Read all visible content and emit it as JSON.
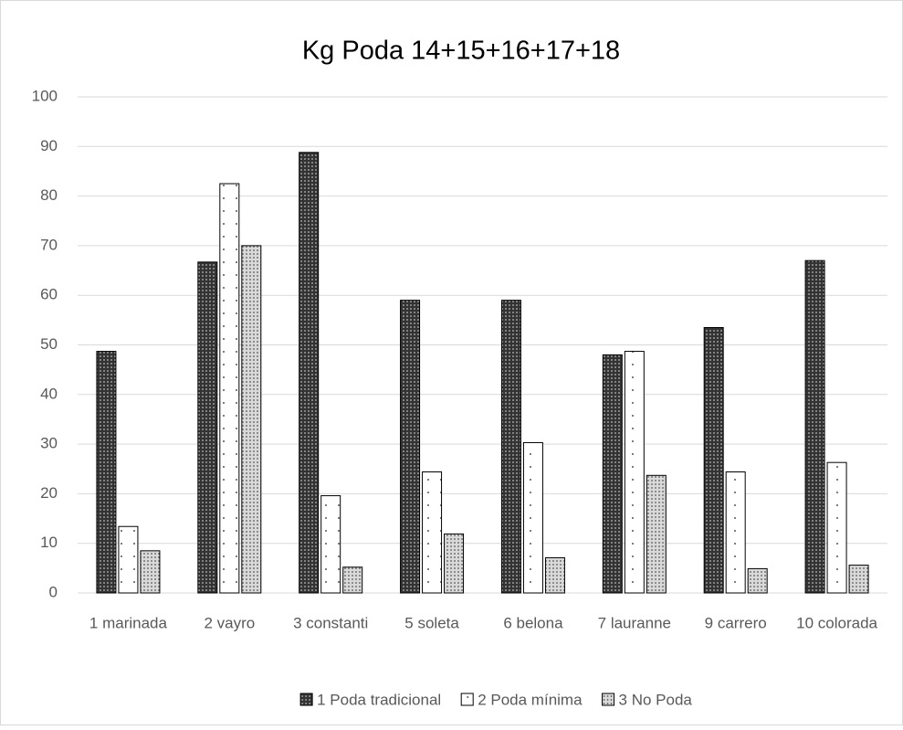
{
  "chart_data": {
    "type": "bar",
    "title": "Kg Poda 14+15+16+17+18",
    "categories": [
      "1 marinada",
      "2 vayro",
      "3 constanti",
      "5 soleta",
      "6 belona",
      "7 lauranne",
      "9 carrero",
      "10 colorada"
    ],
    "series": [
      {
        "name": "1 Poda tradicional",
        "color": "#333333",
        "values": [
          48.7,
          66.7,
          88.8,
          59,
          59,
          48,
          53.5,
          67
        ]
      },
      {
        "name": "2 Poda mínima",
        "color": "#ffffff",
        "values": [
          13.4,
          82.5,
          19.6,
          24.4,
          30.3,
          48.7,
          24.4,
          26.3
        ]
      },
      {
        "name": "3 No Poda",
        "color": "#d9d9d9",
        "values": [
          8.5,
          70,
          5.2,
          11.9,
          7.1,
          23.7,
          4.9,
          5.6
        ]
      }
    ],
    "ylim": [
      0,
      100
    ],
    "yticks": [
      0,
      10,
      20,
      30,
      40,
      50,
      60,
      70,
      80,
      90,
      100
    ],
    "grid": true,
    "legend": "bottom"
  }
}
